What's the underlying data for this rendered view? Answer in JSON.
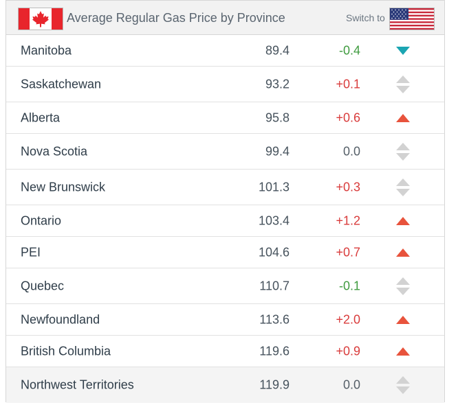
{
  "header": {
    "title": "Average Regular Gas Price by Province",
    "switch_label": "Switch to"
  },
  "colors": {
    "up": "#e8533c",
    "down": "#1ba5b2",
    "neutral": "#d2d2d2",
    "positive_text": "#d93c3c",
    "negative_text": "#3f9b3f"
  },
  "rows": [
    {
      "province": "Manitoba",
      "price": "89.4",
      "change": "-0.4",
      "trend": "down"
    },
    {
      "province": "Saskatchewan",
      "price": "93.2",
      "change": "+0.1",
      "trend": "neutral"
    },
    {
      "province": "Alberta",
      "price": "95.8",
      "change": "+0.6",
      "trend": "up"
    },
    {
      "province": "Nova Scotia",
      "price": "99.4",
      "change": "0.0",
      "trend": "neutral"
    },
    {
      "province": "New Brunswick",
      "price": "101.3",
      "change": "+0.3",
      "trend": "neutral"
    },
    {
      "province": "Ontario",
      "price": "103.4",
      "change": "+1.2",
      "trend": "up"
    },
    {
      "province": "PEI",
      "price": "104.6",
      "change": "+0.7",
      "trend": "up"
    },
    {
      "province": "Quebec",
      "price": "110.7",
      "change": "-0.1",
      "trend": "neutral"
    },
    {
      "province": "Newfoundland",
      "price": "113.6",
      "change": "+2.0",
      "trend": "up"
    },
    {
      "province": "British Columbia",
      "price": "119.6",
      "change": "+0.9",
      "trend": "up"
    },
    {
      "province": "Northwest Territories",
      "price": "119.9",
      "change": "0.0",
      "trend": "neutral"
    }
  ]
}
